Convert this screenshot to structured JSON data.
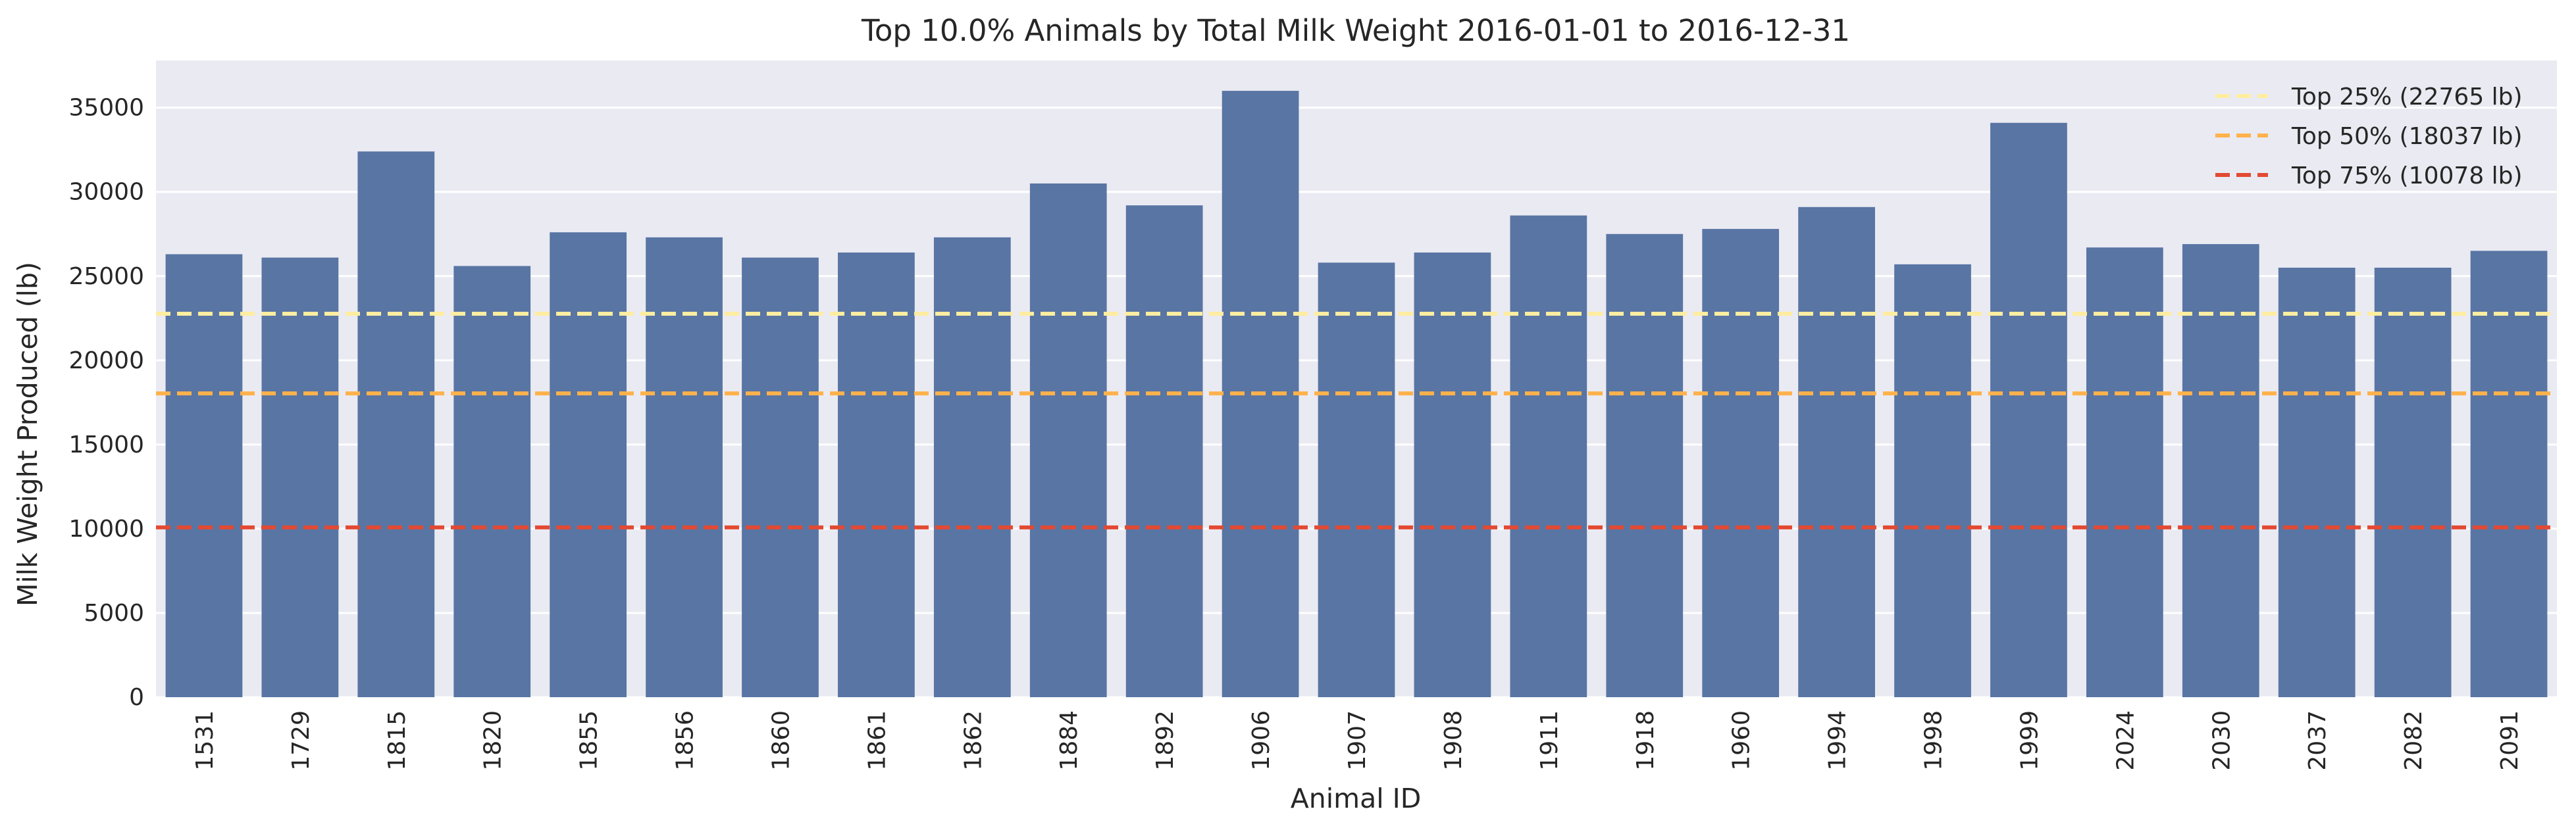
{
  "chart_data": {
    "type": "bar",
    "title": "Top 10.0% Animals by Total Milk Weight 2016-01-01 to 2016-12-31",
    "xlabel": "Animal ID",
    "ylabel": "Milk Weight Produced (lb)",
    "categories": [
      "1531",
      "1729",
      "1815",
      "1820",
      "1855",
      "1856",
      "1860",
      "1861",
      "1862",
      "1884",
      "1892",
      "1906",
      "1907",
      "1908",
      "1911",
      "1918",
      "1960",
      "1994",
      "1998",
      "1999",
      "2024",
      "2030",
      "2037",
      "2082",
      "2091"
    ],
    "values": [
      26300,
      26100,
      32400,
      25600,
      27600,
      27300,
      26100,
      26400,
      27300,
      30500,
      29200,
      36000,
      25800,
      26400,
      28600,
      27500,
      27800,
      29100,
      25700,
      34100,
      26700,
      26900,
      25500,
      25500,
      26500
    ],
    "ylim": [
      0,
      37800
    ],
    "yticks": [
      0,
      5000,
      10000,
      15000,
      20000,
      25000,
      30000,
      35000
    ],
    "grid": true,
    "legend_position": "top-right",
    "bar_color": "#5875a4",
    "background_color": "#eaeaf2",
    "reference_lines": [
      {
        "label": "Top 25% (22765 lb)",
        "value": 22765,
        "color": "#ffeda0"
      },
      {
        "label": "Top 50% (18037 lb)",
        "value": 18037,
        "color": "#feb24c"
      },
      {
        "label": "Top 75% (10078 lb)",
        "value": 10078,
        "color": "#e34a33"
      }
    ]
  }
}
